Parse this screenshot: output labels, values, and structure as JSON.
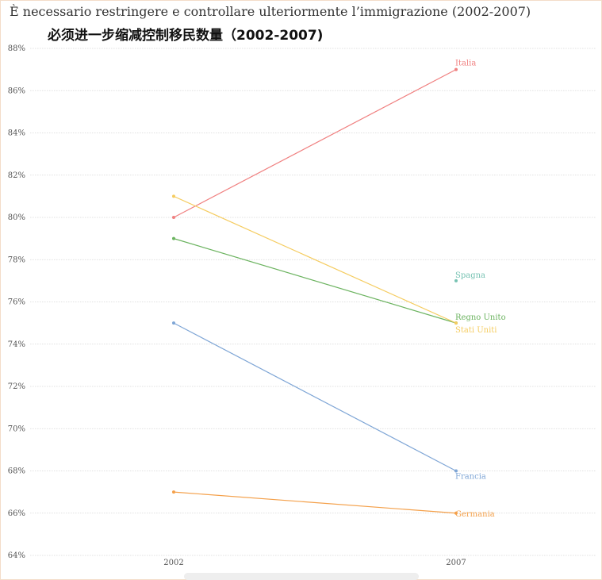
{
  "title": "È necessario restringere e controllare ulteriormente l’immigrazione (2002-2007)",
  "subtitle": "必须进一步缩减控制移民数量（2002-2007)",
  "chart_data": {
    "type": "line",
    "chart_style": "slope",
    "x": [
      "2002",
      "2007"
    ],
    "ylim": [
      64,
      88
    ],
    "yticks": [
      64,
      66,
      68,
      70,
      72,
      74,
      76,
      78,
      80,
      82,
      84,
      86,
      88
    ],
    "ytick_suffix": "%",
    "grid": true,
    "legend": "end labels",
    "series": [
      {
        "name": "Italia",
        "values": [
          80,
          87
        ],
        "color": "#f08080"
      },
      {
        "name": "Spagna",
        "values": [
          null,
          77
        ],
        "color": "#76c2b2"
      },
      {
        "name": "Regno Unito",
        "values": [
          79,
          75
        ],
        "color": "#6bb35f"
      },
      {
        "name": "Stati Uniti",
        "values": [
          81,
          75
        ],
        "color": "#f5cc60"
      },
      {
        "name": "Francia",
        "values": [
          75,
          68
        ],
        "color": "#7fa6d6"
      },
      {
        "name": "Germania",
        "values": [
          67,
          66
        ],
        "color": "#f4a04a"
      }
    ]
  }
}
